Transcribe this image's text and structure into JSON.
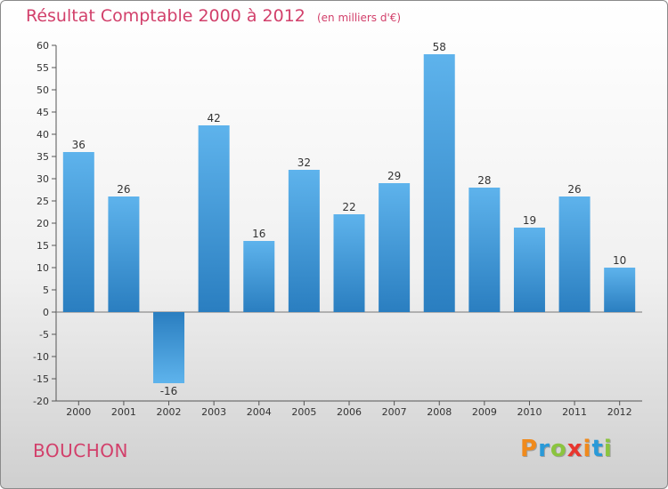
{
  "chart_data": {
    "type": "bar",
    "title": "Résultat Comptable 2000 à 2012",
    "subtitle": "(en milliers d'€)",
    "categories": [
      "2000",
      "2001",
      "2002",
      "2003",
      "2004",
      "2005",
      "2006",
      "2007",
      "2008",
      "2009",
      "2010",
      "2011",
      "2012"
    ],
    "values": [
      36,
      26,
      -16,
      42,
      16,
      32,
      22,
      29,
      58,
      28,
      19,
      26,
      10
    ],
    "value_labels": [
      "36",
      "26",
      "-16",
      "42",
      "16",
      "32",
      "22",
      "29",
      "58",
      "28",
      "19",
      "26",
      "10"
    ],
    "ylim": [
      -20,
      60
    ],
    "yticks": [
      60,
      55,
      50,
      45,
      40,
      35,
      30,
      25,
      20,
      15,
      10,
      5,
      0,
      -5,
      -10,
      -15,
      -20
    ],
    "ytick_labels": [
      "60",
      "55",
      "50",
      "45",
      "40",
      "35",
      "30",
      "25",
      "20",
      "15",
      "10",
      "5",
      "0",
      "-5",
      "-10",
      "-15",
      "-20"
    ],
    "xlabel": "",
    "ylabel": "",
    "grid": false,
    "colors": {
      "bar_light": "#5eb3ec",
      "bar_dark": "#2a7ec0",
      "axis": "#555555"
    }
  },
  "footer": {
    "city": "BOUCHON",
    "brand": "Proxiti",
    "brand_colors": [
      "#f08a1c",
      "#2a9ad8",
      "#8bc43f",
      "#e8362f",
      "#f08a1c",
      "#2a9ad8",
      "#8bc43f"
    ]
  },
  "colors": {
    "title": "#d2406b"
  }
}
